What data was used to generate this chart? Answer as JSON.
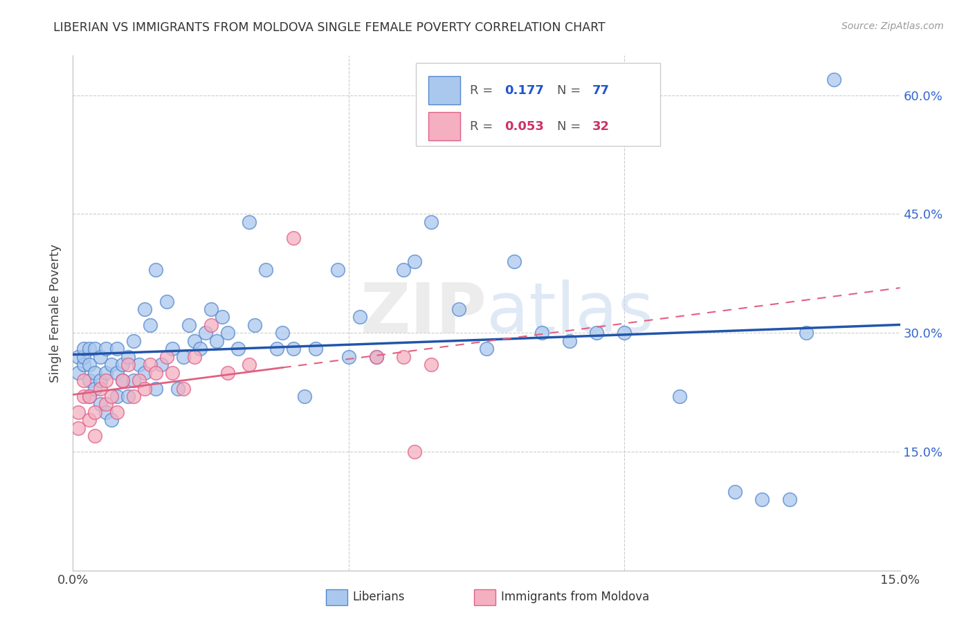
{
  "title": "LIBERIAN VS IMMIGRANTS FROM MOLDOVA SINGLE FEMALE POVERTY CORRELATION CHART",
  "source": "Source: ZipAtlas.com",
  "ylabel": "Single Female Poverty",
  "xlim": [
    0.0,
    0.15
  ],
  "ylim": [
    0.0,
    0.65
  ],
  "legend_blue_r": "0.177",
  "legend_blue_n": "77",
  "legend_pink_r": "0.053",
  "legend_pink_n": "32",
  "blue_fill": "#aac8ee",
  "blue_edge": "#5588cc",
  "pink_fill": "#f4afc0",
  "pink_edge": "#e0608a",
  "blue_line": "#2255aa",
  "pink_line": "#e06080",
  "background_color": "#ffffff",
  "liberian_x": [
    0.001,
    0.001,
    0.002,
    0.002,
    0.002,
    0.003,
    0.003,
    0.003,
    0.003,
    0.004,
    0.004,
    0.004,
    0.005,
    0.005,
    0.005,
    0.006,
    0.006,
    0.006,
    0.007,
    0.007,
    0.008,
    0.008,
    0.008,
    0.009,
    0.009,
    0.01,
    0.01,
    0.011,
    0.011,
    0.012,
    0.013,
    0.013,
    0.014,
    0.015,
    0.015,
    0.016,
    0.017,
    0.018,
    0.019,
    0.02,
    0.021,
    0.022,
    0.023,
    0.024,
    0.025,
    0.026,
    0.027,
    0.028,
    0.03,
    0.032,
    0.033,
    0.035,
    0.037,
    0.038,
    0.04,
    0.042,
    0.044,
    0.048,
    0.05,
    0.052,
    0.055,
    0.06,
    0.062,
    0.065,
    0.07,
    0.075,
    0.08,
    0.085,
    0.09,
    0.095,
    0.1,
    0.11,
    0.12,
    0.125,
    0.13,
    0.133,
    0.138
  ],
  "liberian_y": [
    0.27,
    0.25,
    0.26,
    0.27,
    0.28,
    0.22,
    0.24,
    0.26,
    0.28,
    0.23,
    0.25,
    0.28,
    0.21,
    0.24,
    0.27,
    0.2,
    0.25,
    0.28,
    0.19,
    0.26,
    0.22,
    0.25,
    0.28,
    0.24,
    0.26,
    0.22,
    0.27,
    0.24,
    0.29,
    0.26,
    0.33,
    0.25,
    0.31,
    0.23,
    0.38,
    0.26,
    0.34,
    0.28,
    0.23,
    0.27,
    0.31,
    0.29,
    0.28,
    0.3,
    0.33,
    0.29,
    0.32,
    0.3,
    0.28,
    0.44,
    0.31,
    0.38,
    0.28,
    0.3,
    0.28,
    0.22,
    0.28,
    0.38,
    0.27,
    0.32,
    0.27,
    0.38,
    0.39,
    0.44,
    0.33,
    0.28,
    0.39,
    0.3,
    0.29,
    0.3,
    0.3,
    0.22,
    0.1,
    0.09,
    0.09,
    0.3,
    0.62
  ],
  "moldova_x": [
    0.001,
    0.001,
    0.002,
    0.002,
    0.003,
    0.003,
    0.004,
    0.004,
    0.005,
    0.006,
    0.006,
    0.007,
    0.008,
    0.009,
    0.01,
    0.011,
    0.012,
    0.013,
    0.014,
    0.015,
    0.017,
    0.018,
    0.02,
    0.022,
    0.025,
    0.028,
    0.032,
    0.04,
    0.055,
    0.06,
    0.062,
    0.065
  ],
  "moldova_y": [
    0.2,
    0.18,
    0.22,
    0.24,
    0.19,
    0.22,
    0.17,
    0.2,
    0.23,
    0.21,
    0.24,
    0.22,
    0.2,
    0.24,
    0.26,
    0.22,
    0.24,
    0.23,
    0.26,
    0.25,
    0.27,
    0.25,
    0.23,
    0.27,
    0.31,
    0.25,
    0.26,
    0.42,
    0.27,
    0.27,
    0.15,
    0.26
  ]
}
